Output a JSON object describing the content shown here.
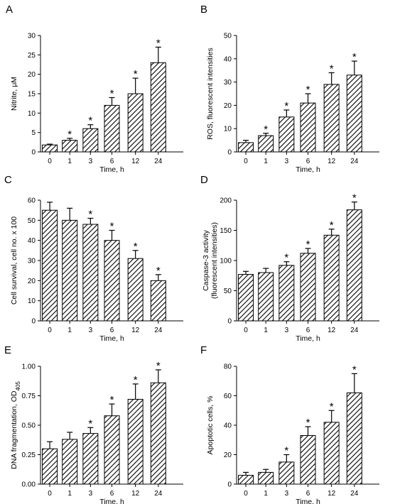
{
  "figure": {
    "panels": [
      {
        "letter": "A"
      },
      {
        "letter": "B"
      },
      {
        "letter": "C"
      },
      {
        "letter": "D"
      },
      {
        "letter": "E"
      },
      {
        "letter": "F"
      }
    ]
  },
  "colors": {
    "bar_edge": "#000000",
    "hatch": "#000000",
    "background": "#ffffff"
  },
  "chart_data": [
    {
      "type": "bar",
      "title": "A",
      "categories": [
        "0",
        "1",
        "3",
        "6",
        "12",
        "24"
      ],
      "values": [
        1.8,
        3,
        6,
        12,
        15,
        23
      ],
      "errors": [
        0.2,
        0.5,
        1,
        2,
        4,
        4
      ],
      "significant": [
        false,
        true,
        true,
        true,
        true,
        true
      ],
      "xlabel": "Time, h",
      "ylabel": "Nitrite, μM",
      "ylim": [
        0,
        30
      ],
      "yticks": [
        "0",
        "5",
        "10",
        "15",
        "20",
        "25",
        "30"
      ]
    },
    {
      "type": "bar",
      "title": "B",
      "categories": [
        "0",
        "1",
        "3",
        "6",
        "12",
        "24"
      ],
      "values": [
        4,
        7,
        15,
        21,
        29,
        33
      ],
      "errors": [
        1,
        1,
        3,
        4,
        5,
        6
      ],
      "significant": [
        false,
        true,
        true,
        true,
        true,
        true
      ],
      "xlabel": "Time, h",
      "ylabel": "ROS, fluorescent intensities",
      "ylim": [
        0,
        50
      ],
      "yticks": [
        "0",
        "10",
        "20",
        "30",
        "40",
        "50"
      ]
    },
    {
      "type": "bar",
      "title": "C",
      "categories": [
        "0",
        "1",
        "3",
        "6",
        "12",
        "24"
      ],
      "values": [
        55,
        50,
        48,
        40,
        31,
        20
      ],
      "errors": [
        4,
        6,
        3,
        5,
        4,
        3
      ],
      "significant": [
        false,
        false,
        true,
        true,
        true,
        true
      ],
      "xlabel": "Time, h",
      "ylabel": "Cell survival, cell no. x 100",
      "ylim": [
        0,
        60
      ],
      "yticks": [
        "0",
        "10",
        "20",
        "30",
        "40",
        "50",
        "60"
      ]
    },
    {
      "type": "bar",
      "title": "D",
      "categories": [
        "0",
        "1",
        "3",
        "6",
        "12",
        "24"
      ],
      "values": [
        77,
        80,
        92,
        112,
        142,
        184
      ],
      "errors": [
        5,
        7,
        6,
        8,
        10,
        13
      ],
      "significant": [
        false,
        false,
        true,
        true,
        true,
        true
      ],
      "xlabel": "Time, h",
      "ylabel": "Caspase-3 activity (fluorescent intensities)",
      "ylabel_lines": [
        "Caspase-3 activity",
        "(fluorescent intensities)"
      ],
      "ylim": [
        0,
        200
      ],
      "yticks": [
        "0",
        "50",
        "100",
        "150",
        "200"
      ]
    },
    {
      "type": "bar",
      "title": "E",
      "categories": [
        "0",
        "1",
        "3",
        "6",
        "12",
        "24"
      ],
      "values": [
        0.3,
        0.38,
        0.43,
        0.58,
        0.72,
        0.86
      ],
      "errors": [
        0.06,
        0.06,
        0.05,
        0.1,
        0.13,
        0.11
      ],
      "significant": [
        false,
        false,
        true,
        true,
        true,
        true
      ],
      "xlabel": "Time, h",
      "ylabel": "DNA fragmentation, OD405",
      "ylabel_main": "DNA fragmentation, OD",
      "ylabel_sub": "405",
      "ylim": [
        0,
        1
      ],
      "yticks": [
        "0.00",
        "0.25",
        "0.50",
        "0.75",
        "1.00"
      ]
    },
    {
      "type": "bar",
      "title": "F",
      "categories": [
        "0",
        "1",
        "3",
        "6",
        "12",
        "24"
      ],
      "values": [
        6,
        8,
        15,
        33,
        42,
        62
      ],
      "errors": [
        2,
        2,
        5,
        6,
        8,
        13
      ],
      "significant": [
        false,
        false,
        true,
        true,
        true,
        true
      ],
      "xlabel": "Time, h",
      "ylabel": "Apoptotic cells, %",
      "ylim": [
        0,
        80
      ],
      "yticks": [
        "0",
        "20",
        "40",
        "60",
        "80"
      ]
    }
  ]
}
